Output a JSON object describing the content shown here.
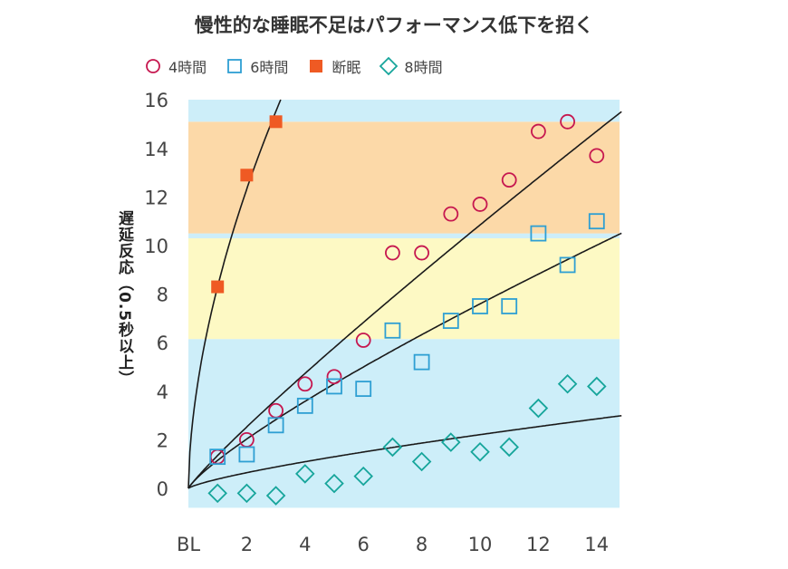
{
  "chart_data": {
    "type": "scatter",
    "title": "慢性的な睡眠不足はパフォーマンス低下を招く",
    "xlabel": "",
    "ylabel": "遅延反応（0.5秒以上）",
    "xlim": [
      0,
      14.85
    ],
    "ylim": [
      -0.8,
      16.1
    ],
    "x_ticks": [
      {
        "value": 0,
        "label": "BL"
      },
      {
        "value": 2,
        "label": "2"
      },
      {
        "value": 4,
        "label": "4"
      },
      {
        "value": 6,
        "label": "6"
      },
      {
        "value": 8,
        "label": "8"
      },
      {
        "value": 10,
        "label": "10"
      },
      {
        "value": 12,
        "label": "12"
      },
      {
        "value": 14,
        "label": "14"
      }
    ],
    "y_ticks": [
      0,
      2,
      4,
      6,
      8,
      10,
      12,
      14,
      16
    ],
    "bands": [
      {
        "y0": -0.8,
        "y1": 6.15,
        "color": "#cdeef9"
      },
      {
        "y0": 6.15,
        "y1": 10.3,
        "color": "#fdf9c4"
      },
      {
        "y0": 10.3,
        "y1": 10.5,
        "color": "#cdeef9"
      },
      {
        "y0": 10.5,
        "y1": 15.1,
        "color": "#fcd9a8"
      },
      {
        "y0": 15.1,
        "y1": 16.1,
        "color": "#cdeef9"
      }
    ],
    "series": [
      {
        "name": "4時間",
        "marker": "circle-open",
        "color": "#c6174f",
        "x": [
          1,
          2,
          3,
          4,
          5,
          6,
          7,
          8,
          9,
          10,
          11,
          12,
          13,
          14
        ],
        "y": [
          1.3,
          2.0,
          3.2,
          4.3,
          4.6,
          6.1,
          9.7,
          9.7,
          11.3,
          11.7,
          12.7,
          14.7,
          15.1,
          13.7
        ],
        "fit": {
          "a": 1.35,
          "p": 0.905
        }
      },
      {
        "name": "6時間",
        "marker": "square-open",
        "color": "#2e9fd3",
        "x": [
          1,
          2,
          3,
          4,
          5,
          6,
          7,
          8,
          9,
          10,
          11,
          12,
          13,
          14
        ],
        "y": [
          1.3,
          1.4,
          2.6,
          3.4,
          4.2,
          4.1,
          6.5,
          5.2,
          6.9,
          7.5,
          7.5,
          10.5,
          9.2,
          11.0
        ],
        "fit": {
          "a": 1.15,
          "p": 0.82
        }
      },
      {
        "name": "断眠",
        "marker": "square-filled",
        "color": "#ef5a23",
        "x": [
          1,
          2,
          3
        ],
        "y": [
          8.3,
          12.9,
          15.1
        ],
        "fit": {
          "a": 8.3,
          "p": 0.57
        }
      },
      {
        "name": "8時間",
        "marker": "diamond-open",
        "color": "#16a59b",
        "x": [
          1,
          2,
          3,
          4,
          5,
          6,
          7,
          8,
          9,
          10,
          11,
          12,
          13,
          14
        ],
        "y": [
          -0.2,
          -0.2,
          -0.3,
          0.6,
          0.2,
          0.5,
          1.7,
          1.1,
          1.9,
          1.5,
          1.7,
          3.3,
          4.3,
          4.2
        ],
        "fit": {
          "a": 0.38,
          "p": 0.765
        }
      }
    ]
  }
}
